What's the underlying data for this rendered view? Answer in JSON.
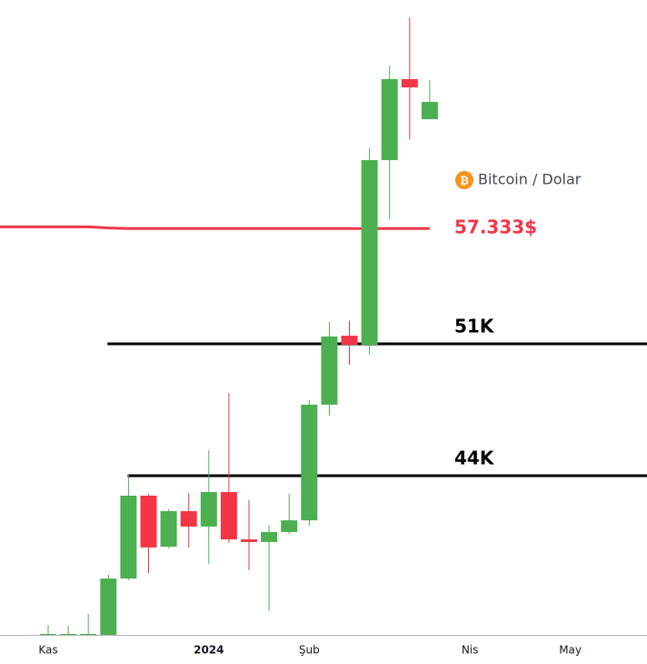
{
  "chart_data": {
    "type": "candlestick",
    "legend": "Bitcoin / Dolar",
    "up_color": "#4caf50",
    "down_color": "#f23645",
    "ylim": [
      35550,
      69250
    ],
    "xticks": [
      {
        "value": 0,
        "label": "Kas"
      },
      {
        "value": 8,
        "label": "2024"
      },
      {
        "value": 13,
        "label": "Şub"
      },
      {
        "value": 21,
        "label": "Nis"
      },
      {
        "value": 26,
        "label": "May"
      }
    ],
    "open": [
      35550,
      35550,
      35550,
      35550,
      38540,
      42940,
      40230,
      42120,
      41300,
      43130,
      40620,
      40480,
      41010,
      41630,
      47770,
      51430,
      50950,
      60750,
      65050,
      62920
    ],
    "close": [
      35600,
      35600,
      35600,
      38540,
      42940,
      40190,
      42120,
      41300,
      43130,
      40620,
      40480,
      41010,
      41630,
      47770,
      51390,
      50950,
      60750,
      65050,
      64610,
      63840
    ],
    "high": [
      36080,
      36030,
      36660,
      38740,
      44050,
      43030,
      42210,
      43080,
      45350,
      48390,
      42700,
      41390,
      43030,
      48010,
      52160,
      52210,
      61380,
      65770,
      68330,
      65000
    ],
    "low": [
      35550,
      35550,
      35550,
      35550,
      38450,
      38830,
      40140,
      40190,
      39320,
      40430,
      38980,
      36810,
      40910,
      41340,
      47190,
      49890,
      50420,
      57610,
      61860,
      62920
    ],
    "moving_average": {
      "color": "#f0374a",
      "label": "57.333$",
      "values": [
        57210,
        57210,
        57210,
        57150,
        57120,
        57120,
        57120,
        57120,
        57120,
        57120,
        57120,
        57120,
        57120,
        57120,
        57120,
        57120,
        57120,
        57120,
        57120,
        57120
      ]
    },
    "levels": [
      {
        "value": 51000,
        "label": "51K",
        "color": "#000000"
      },
      {
        "value": 44000,
        "label": "44K",
        "color": "#000000"
      }
    ]
  }
}
